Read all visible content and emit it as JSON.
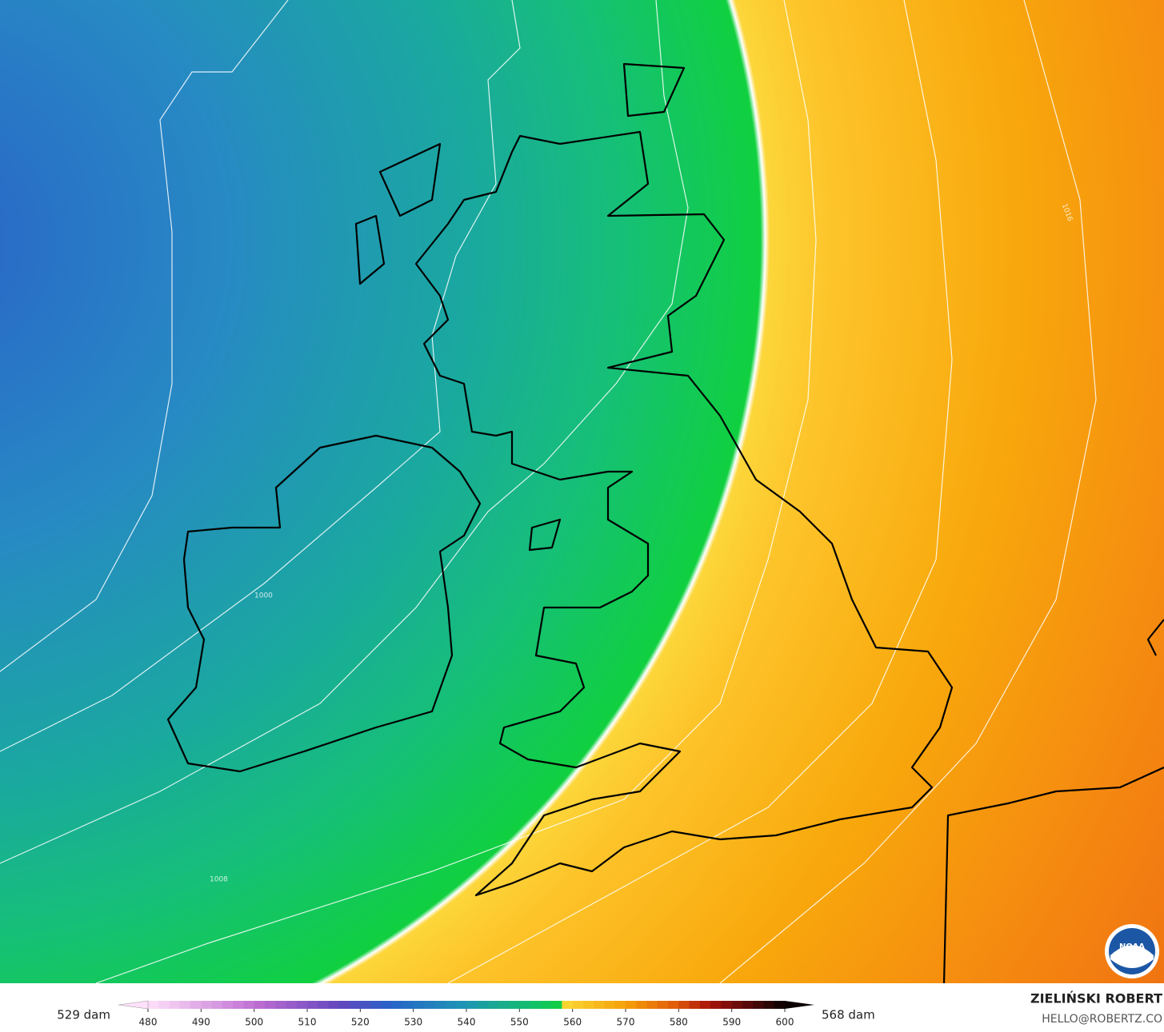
{
  "colorbar": {
    "min_label": "529 dam",
    "max_label": "568 dam",
    "ticks": [
      480,
      490,
      500,
      510,
      520,
      530,
      540,
      550,
      560,
      570,
      580,
      590,
      600
    ]
  },
  "credit": {
    "name": "ZIELIŃSKI ROBERT",
    "email": "HELLO@ROBERTZ.CO"
  },
  "contour_labels": [
    "1000",
    "1008",
    "1016"
  ],
  "logo": "NOAA"
}
